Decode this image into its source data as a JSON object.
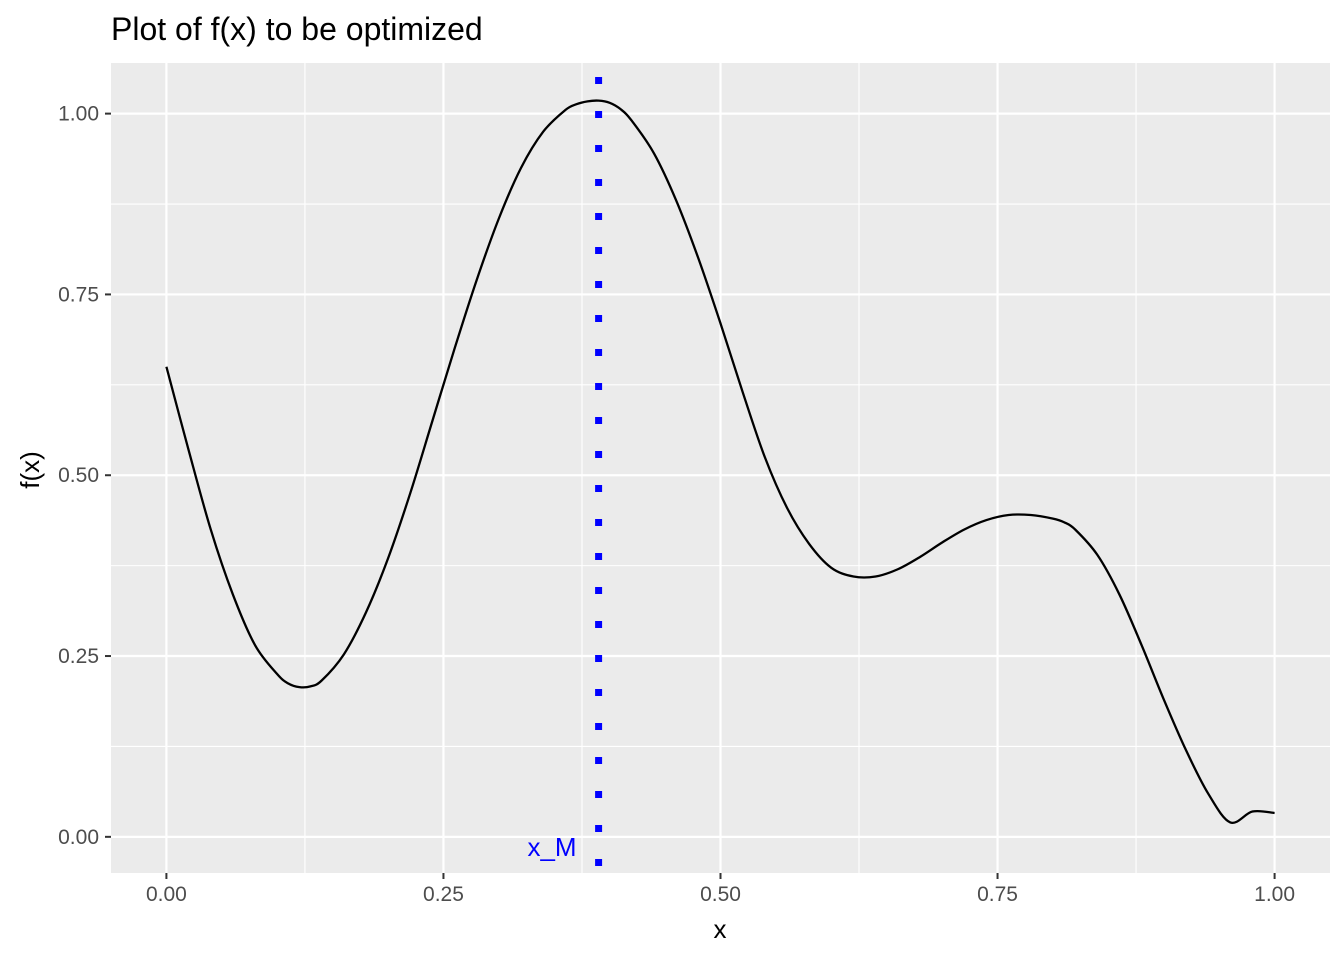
{
  "chart_data": {
    "type": "line",
    "title": "Plot of f(x) to be optimized",
    "xlabel": "x",
    "ylabel": "f(x)",
    "xlim": [
      -0.05,
      1.05
    ],
    "ylim": [
      -0.05,
      1.07
    ],
    "x_ticks": [
      0.0,
      0.25,
      0.5,
      0.75,
      1.0
    ],
    "x_tick_labels": [
      "0.00",
      "0.25",
      "0.50",
      "0.75",
      "1.00"
    ],
    "y_ticks": [
      0.0,
      0.25,
      0.5,
      0.75,
      1.0
    ],
    "y_tick_labels": [
      "0.00",
      "0.25",
      "0.50",
      "0.75",
      "1.00"
    ],
    "grid": true,
    "series": [
      {
        "color": "#000000",
        "x": [
          0.0,
          0.02,
          0.04,
          0.06,
          0.08,
          0.1,
          0.11,
          0.12,
          0.13,
          0.14,
          0.16,
          0.18,
          0.2,
          0.22,
          0.24,
          0.26,
          0.28,
          0.3,
          0.32,
          0.34,
          0.36,
          0.37,
          0.38,
          0.39,
          0.4,
          0.41,
          0.42,
          0.44,
          0.46,
          0.48,
          0.5,
          0.52,
          0.54,
          0.56,
          0.58,
          0.6,
          0.62,
          0.64,
          0.66,
          0.68,
          0.7,
          0.72,
          0.74,
          0.76,
          0.78,
          0.8,
          0.81,
          0.82,
          0.84,
          0.86,
          0.88,
          0.9,
          0.92,
          0.94,
          0.96,
          0.98,
          1.0
        ],
        "y": [
          0.65,
          0.535,
          0.425,
          0.335,
          0.265,
          0.225,
          0.212,
          0.207,
          0.208,
          0.216,
          0.252,
          0.31,
          0.385,
          0.475,
          0.575,
          0.675,
          0.77,
          0.855,
          0.925,
          0.975,
          1.005,
          1.013,
          1.017,
          1.018,
          1.015,
          1.006,
          0.99,
          0.945,
          0.88,
          0.8,
          0.71,
          0.615,
          0.525,
          0.455,
          0.405,
          0.372,
          0.36,
          0.36,
          0.37,
          0.387,
          0.407,
          0.425,
          0.438,
          0.445,
          0.445,
          0.44,
          0.435,
          0.425,
          0.39,
          0.335,
          0.265,
          0.19,
          0.12,
          0.06,
          0.02,
          0.035,
          0.033
        ]
      }
    ],
    "vline": {
      "x": 0.39,
      "color": "#0000ff",
      "style": "dotted",
      "label": "x_M"
    }
  }
}
